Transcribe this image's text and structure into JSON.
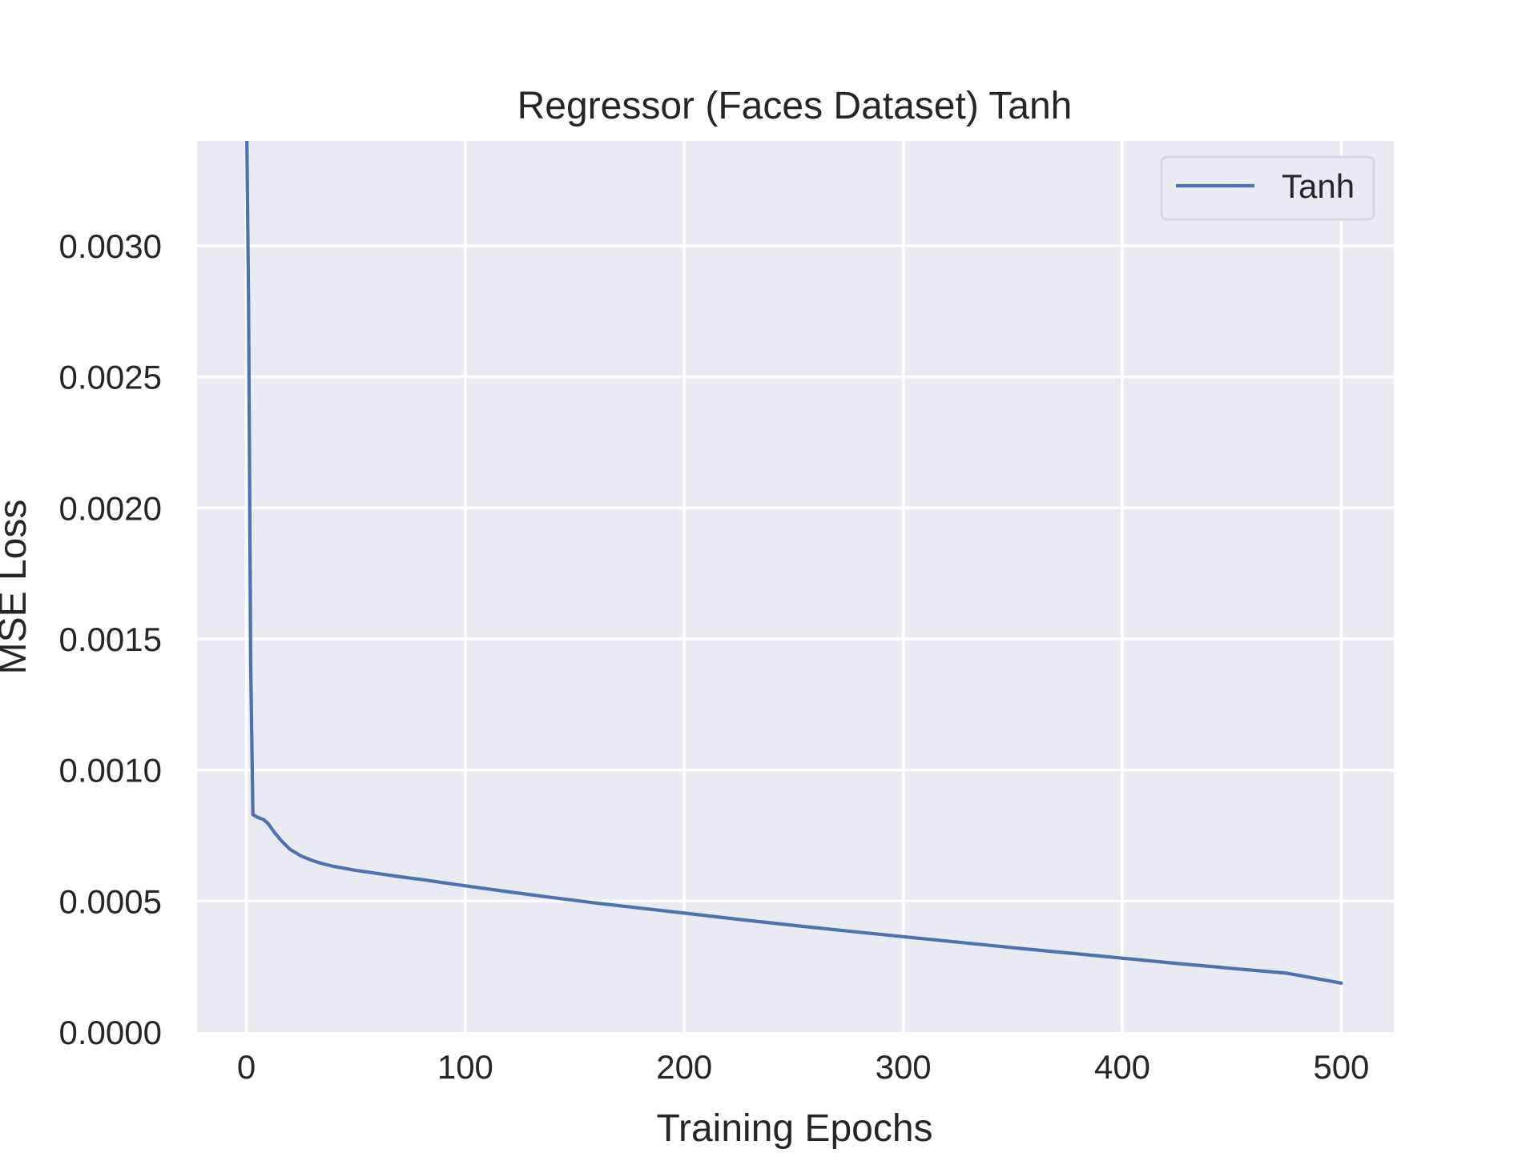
{
  "chart_data": {
    "type": "line",
    "title": "Regressor (Faces Dataset) Tanh",
    "xlabel": "Training Epochs",
    "ylabel": "MSE Loss",
    "xlim": [
      -22.5,
      524
    ],
    "ylim": [
      0,
      0.0034
    ],
    "grid": true,
    "legend_position": "top-right",
    "background": "#eaeaf2",
    "grid_color": "#ffffff",
    "xticks": [
      {
        "value": 0,
        "label": "0"
      },
      {
        "value": 100,
        "label": "100"
      },
      {
        "value": 200,
        "label": "200"
      },
      {
        "value": 300,
        "label": "300"
      },
      {
        "value": 400,
        "label": "400"
      },
      {
        "value": 500,
        "label": "500"
      }
    ],
    "yticks": [
      {
        "value": 0.0,
        "label": "0.0000"
      },
      {
        "value": 0.0005,
        "label": "0.0005"
      },
      {
        "value": 0.001,
        "label": "0.0010"
      },
      {
        "value": 0.0015,
        "label": "0.0015"
      },
      {
        "value": 0.002,
        "label": "0.0020"
      },
      {
        "value": 0.0025,
        "label": "0.0025"
      },
      {
        "value": 0.003,
        "label": "0.0030"
      }
    ],
    "series": [
      {
        "name": "Tanh",
        "color": "#4c72b0",
        "x": [
          0,
          1,
          2,
          3,
          5,
          8,
          10,
          13,
          16,
          20,
          25,
          30,
          35,
          40,
          50,
          60,
          70,
          80,
          90,
          100,
          120,
          140,
          160,
          180,
          200,
          225,
          250,
          275,
          300,
          325,
          350,
          375,
          400,
          425,
          450,
          475,
          500
        ],
        "y": [
          0.0036,
          0.0028,
          0.0014,
          0.00083,
          0.00082,
          0.00081,
          0.000795,
          0.00076,
          0.00073,
          0.000697,
          0.000672,
          0.000655,
          0.000642,
          0.000632,
          0.000617,
          0.000605,
          0.000593,
          0.000582,
          0.00057,
          0.000558,
          0.000535,
          0.000513,
          0.000492,
          0.000473,
          0.000454,
          0.00043,
          0.000407,
          0.000385,
          0.000364,
          0.000343,
          0.000322,
          0.000302,
          0.000282,
          0.000262,
          0.000243,
          0.000225,
          0.000187
        ]
      }
    ]
  }
}
